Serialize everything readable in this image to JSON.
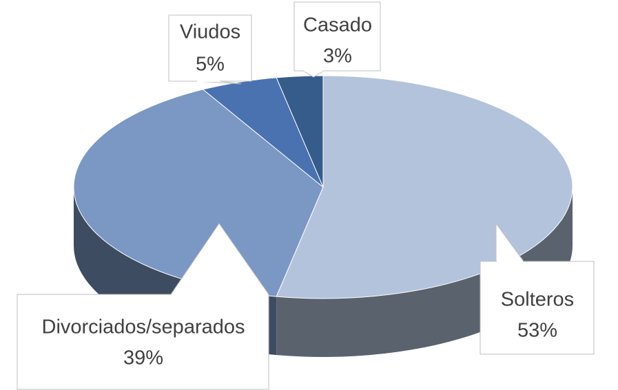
{
  "chart_data": {
    "type": "pie",
    "categories": [
      "Solteros",
      "Divorciados/separados",
      "Viudos",
      "Casado"
    ],
    "values": [
      53,
      39,
      5,
      3
    ],
    "value_labels": [
      "53%",
      "39%",
      "5%",
      "3%"
    ],
    "colors": [
      "#b4c3dc",
      "#7b97c4",
      "#4a72b0",
      "#365c8c"
    ]
  }
}
